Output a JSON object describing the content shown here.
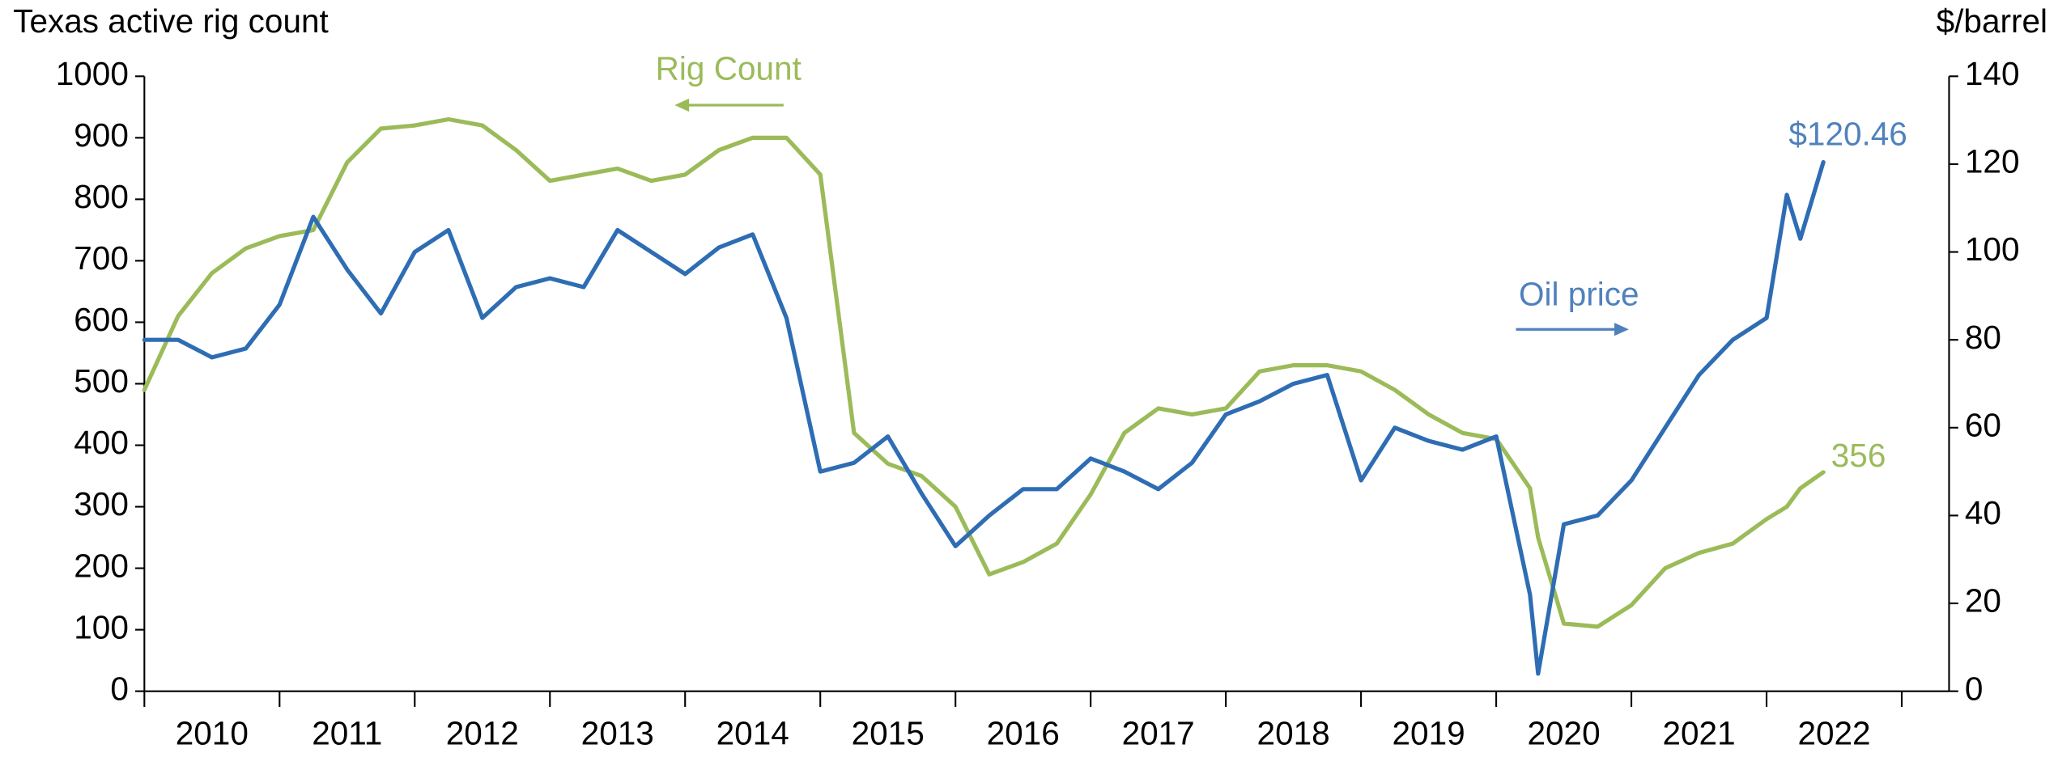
{
  "chart_data": {
    "type": "line",
    "y_title": "Texas active rig count",
    "y2_title": "$/barrel",
    "annotations": [
      "Rig Count",
      "Oil price",
      "$120.46",
      "356"
    ],
    "x": [
      2010.0,
      2010.25,
      2010.5,
      2010.75,
      2011.0,
      2011.25,
      2011.5,
      2011.75,
      2012.0,
      2012.25,
      2012.5,
      2012.75,
      2013.0,
      2013.25,
      2013.5,
      2013.75,
      2014.0,
      2014.25,
      2014.5,
      2014.75,
      2015.0,
      2015.25,
      2015.5,
      2015.75,
      2016.0,
      2016.25,
      2016.5,
      2016.75,
      2017.0,
      2017.25,
      2017.5,
      2017.75,
      2018.0,
      2018.25,
      2018.5,
      2018.75,
      2019.0,
      2019.25,
      2019.5,
      2019.75,
      2020.0,
      2020.25,
      2020.31,
      2020.5,
      2020.75,
      2021.0,
      2021.25,
      2021.5,
      2021.75,
      2022.0,
      2022.15,
      2022.25,
      2022.42
    ],
    "series": [
      {
        "name": "Rig Count",
        "color": "#9bbb59",
        "axis": "y",
        "values": [
          490,
          610,
          680,
          720,
          740,
          750,
          860,
          915,
          920,
          930,
          920,
          880,
          830,
          840,
          850,
          830,
          840,
          880,
          900,
          900,
          840,
          420,
          370,
          350,
          300,
          190,
          210,
          240,
          320,
          420,
          460,
          450,
          460,
          520,
          530,
          530,
          520,
          490,
          450,
          420,
          410,
          330,
          250,
          110,
          105,
          140,
          200,
          225,
          240,
          280,
          300,
          330,
          356
        ]
      },
      {
        "name": "Oil price",
        "color": "#2e6db4",
        "axis": "y2",
        "values": [
          80,
          80,
          76,
          78,
          88,
          108,
          96,
          86,
          100,
          105,
          85,
          92,
          94,
          92,
          105,
          100,
          95,
          101,
          104,
          85,
          50,
          52,
          58,
          45,
          33,
          40,
          46,
          46,
          53,
          50,
          46,
          52,
          63,
          66,
          70,
          72,
          48,
          60,
          57,
          55,
          58,
          22,
          4,
          38,
          40,
          48,
          60,
          72,
          80,
          85,
          113,
          103,
          120.46
        ]
      }
    ],
    "xlim": [
      2010,
      2023.35
    ],
    "xticks": [
      {
        "value": 2010.5,
        "label": "2010"
      },
      {
        "value": 2011.5,
        "label": "2011"
      },
      {
        "value": 2012.5,
        "label": "2012"
      },
      {
        "value": 2013.5,
        "label": "2013"
      },
      {
        "value": 2014.5,
        "label": "2014"
      },
      {
        "value": 2015.5,
        "label": "2015"
      },
      {
        "value": 2016.5,
        "label": "2016"
      },
      {
        "value": 2017.5,
        "label": "2017"
      },
      {
        "value": 2018.5,
        "label": "2018"
      },
      {
        "value": 2019.5,
        "label": "2019"
      },
      {
        "value": 2020.5,
        "label": "2020"
      },
      {
        "value": 2021.5,
        "label": "2021"
      },
      {
        "value": 2022.5,
        "label": "2022"
      }
    ],
    "xminorticks": [
      2010,
      2011,
      2012,
      2013,
      2014,
      2015,
      2016,
      2017,
      2018,
      2019,
      2020,
      2021,
      2022,
      2023
    ],
    "ylim": [
      0,
      1000
    ],
    "yticks": [
      0,
      100,
      200,
      300,
      400,
      500,
      600,
      700,
      800,
      900,
      1000
    ],
    "y2lim": [
      0,
      140
    ],
    "y2ticks": [
      0,
      20,
      40,
      60,
      80,
      100,
      120,
      140
    ],
    "grid": false
  }
}
